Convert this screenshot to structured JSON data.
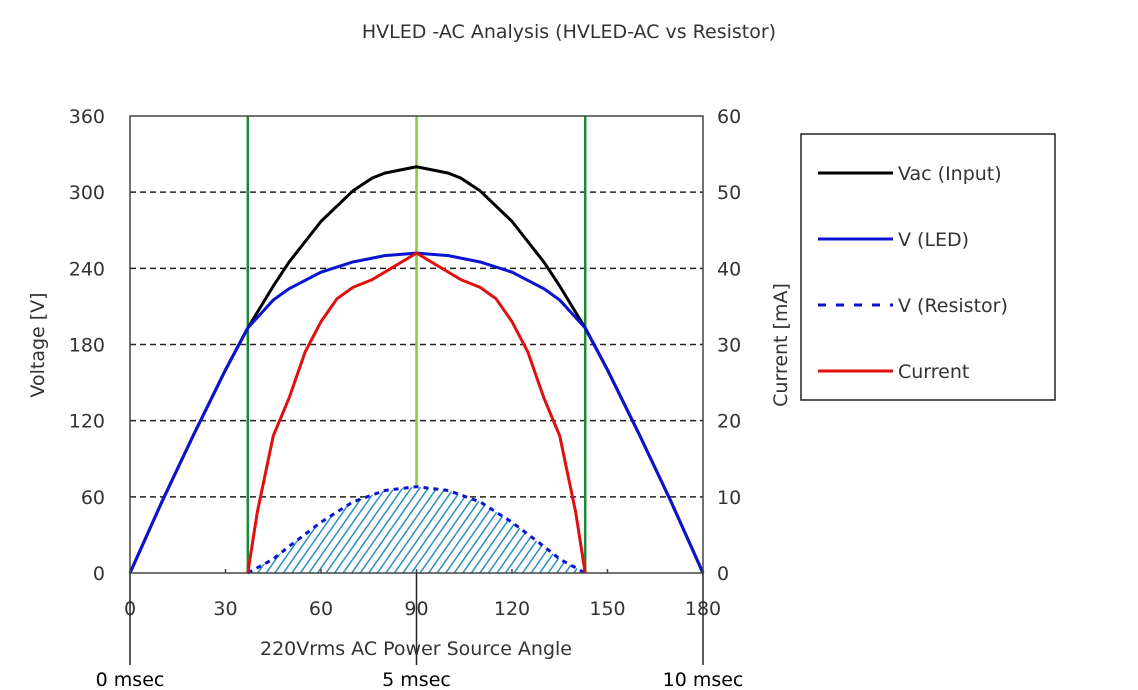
{
  "chart_data": {
    "type": "line",
    "title": "HVLED -AC Analysis (HVLED-AC vs Resistor)",
    "xlabel": "220Vrms AC Power Source Angle",
    "ylabel": "Voltage [V]",
    "y2label": "Current [mA]",
    "xlim": [
      0,
      180
    ],
    "ylim": [
      0,
      360
    ],
    "y2lim": [
      0,
      60
    ],
    "xticks": [
      "0",
      "30",
      "60",
      "90",
      "120",
      "150",
      "180"
    ],
    "yticks": [
      "0",
      "60",
      "120",
      "180",
      "240",
      "300",
      "360"
    ],
    "y2ticks": [
      "0",
      "10",
      "20",
      "30",
      "40",
      "50",
      "60"
    ],
    "time_labels": [
      {
        "angle": 0,
        "label": "0 msec"
      },
      {
        "angle": 90,
        "label": "5 msec"
      },
      {
        "angle": 180,
        "label": "10 msec"
      }
    ],
    "grid": "horizontal-dashed",
    "legend_position": "right",
    "vertical_markers": [
      {
        "angle": 37,
        "color": "#1a8a3a"
      },
      {
        "angle": 90,
        "color": "#8cc63f"
      },
      {
        "angle": 143,
        "color": "#1a8a3a"
      }
    ],
    "series": [
      {
        "name": "Vac (Input)",
        "axis": "left",
        "color": "#000000",
        "style": "solid",
        "x": [
          0,
          10,
          20,
          30,
          37,
          45,
          50,
          60,
          70,
          76,
          80,
          90,
          100,
          104,
          110,
          120,
          130,
          135,
          143,
          150,
          160,
          170,
          180
        ],
        "y": [
          0,
          56,
          109,
          160,
          193,
          226,
          245,
          277,
          301,
          311,
          315,
          320,
          315,
          311,
          301,
          277,
          245,
          226,
          193,
          160,
          109,
          56,
          0
        ]
      },
      {
        "name": "V (LED)",
        "axis": "left",
        "color": "#0a14d0",
        "style": "solid",
        "x": [
          0,
          10,
          20,
          30,
          37,
          45,
          50,
          60,
          70,
          80,
          90,
          100,
          110,
          120,
          130,
          135,
          143,
          150,
          160,
          170,
          180
        ],
        "y": [
          0,
          56,
          109,
          160,
          193,
          215,
          224,
          237,
          245,
          250,
          252,
          250,
          245,
          237,
          224,
          215,
          193,
          160,
          109,
          56,
          0
        ]
      },
      {
        "name": "V (Resistor)",
        "axis": "left",
        "color": "#0a14d0",
        "style": "dashed",
        "fill": "#2a8fc0",
        "x": [
          37,
          45,
          50,
          60,
          70,
          80,
          90,
          100,
          110,
          120,
          130,
          135,
          143
        ],
        "y": [
          0,
          11,
          21,
          40,
          56,
          65,
          68,
          65,
          56,
          40,
          21,
          11,
          0
        ]
      },
      {
        "name": "Current",
        "axis": "right",
        "color": "#e01010",
        "style": "solid",
        "x": [
          37,
          40,
          45,
          50,
          55,
          60,
          65,
          70,
          76,
          90,
          104,
          110,
          115,
          120,
          125,
          130,
          135,
          140,
          143
        ],
        "y": [
          0,
          8,
          18,
          23,
          29,
          33,
          36,
          37.5,
          38.5,
          42,
          38.5,
          37.5,
          36,
          33,
          29,
          23,
          18,
          8,
          0
        ]
      }
    ]
  }
}
